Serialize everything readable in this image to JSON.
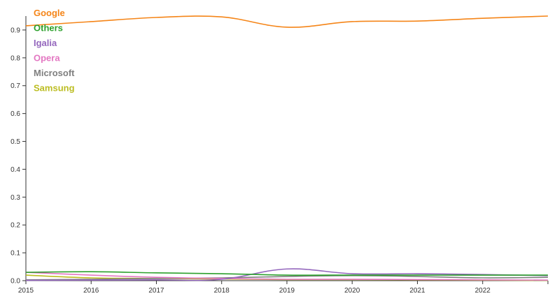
{
  "chart_data": {
    "type": "line",
    "title": "",
    "xlabel": "",
    "ylabel": "",
    "xlim": [
      2015,
      2023
    ],
    "ylim": [
      0,
      0.95
    ],
    "x_ticks": [
      "2015",
      "2016",
      "2017",
      "2018",
      "2019",
      "2020",
      "2021",
      "2022"
    ],
    "y_ticks": [
      "0.0",
      "0.1",
      "0.2",
      "0.3",
      "0.4",
      "0.5",
      "0.6",
      "0.7",
      "0.8",
      "0.9"
    ],
    "grid": false,
    "legend_position": "top-left",
    "x": [
      2015,
      2016,
      2017,
      2018,
      2019,
      2020,
      2021,
      2022,
      2023
    ],
    "series": [
      {
        "name": "Google",
        "color": "#f58518",
        "values": [
          0.915,
          0.93,
          0.945,
          0.947,
          0.91,
          0.93,
          0.932,
          0.942,
          0.95
        ]
      },
      {
        "name": "Others",
        "color": "#2ca02c",
        "values": [
          0.03,
          0.032,
          0.028,
          0.025,
          0.02,
          0.02,
          0.02,
          0.02,
          0.02
        ]
      },
      {
        "name": "Igalia",
        "color": "#9467bd",
        "values": [
          0.001,
          0.002,
          0.003,
          0.005,
          0.042,
          0.025,
          0.025,
          0.022,
          0.018
        ]
      },
      {
        "name": "Opera",
        "color": "#e377c2",
        "values": [
          0.03,
          0.02,
          0.012,
          0.008,
          0.005,
          0.005,
          0.004,
          0.003,
          0.002
        ]
      },
      {
        "name": "Microsoft",
        "color": "#7f7f7f",
        "values": [
          0.003,
          0.005,
          0.008,
          0.01,
          0.015,
          0.018,
          0.015,
          0.01,
          0.012
        ]
      },
      {
        "name": "Samsung",
        "color": "#bcbd22",
        "values": [
          0.02,
          0.01,
          0.008,
          0.006,
          0.004,
          0.004,
          0.003,
          0.002,
          0.001
        ]
      }
    ]
  }
}
